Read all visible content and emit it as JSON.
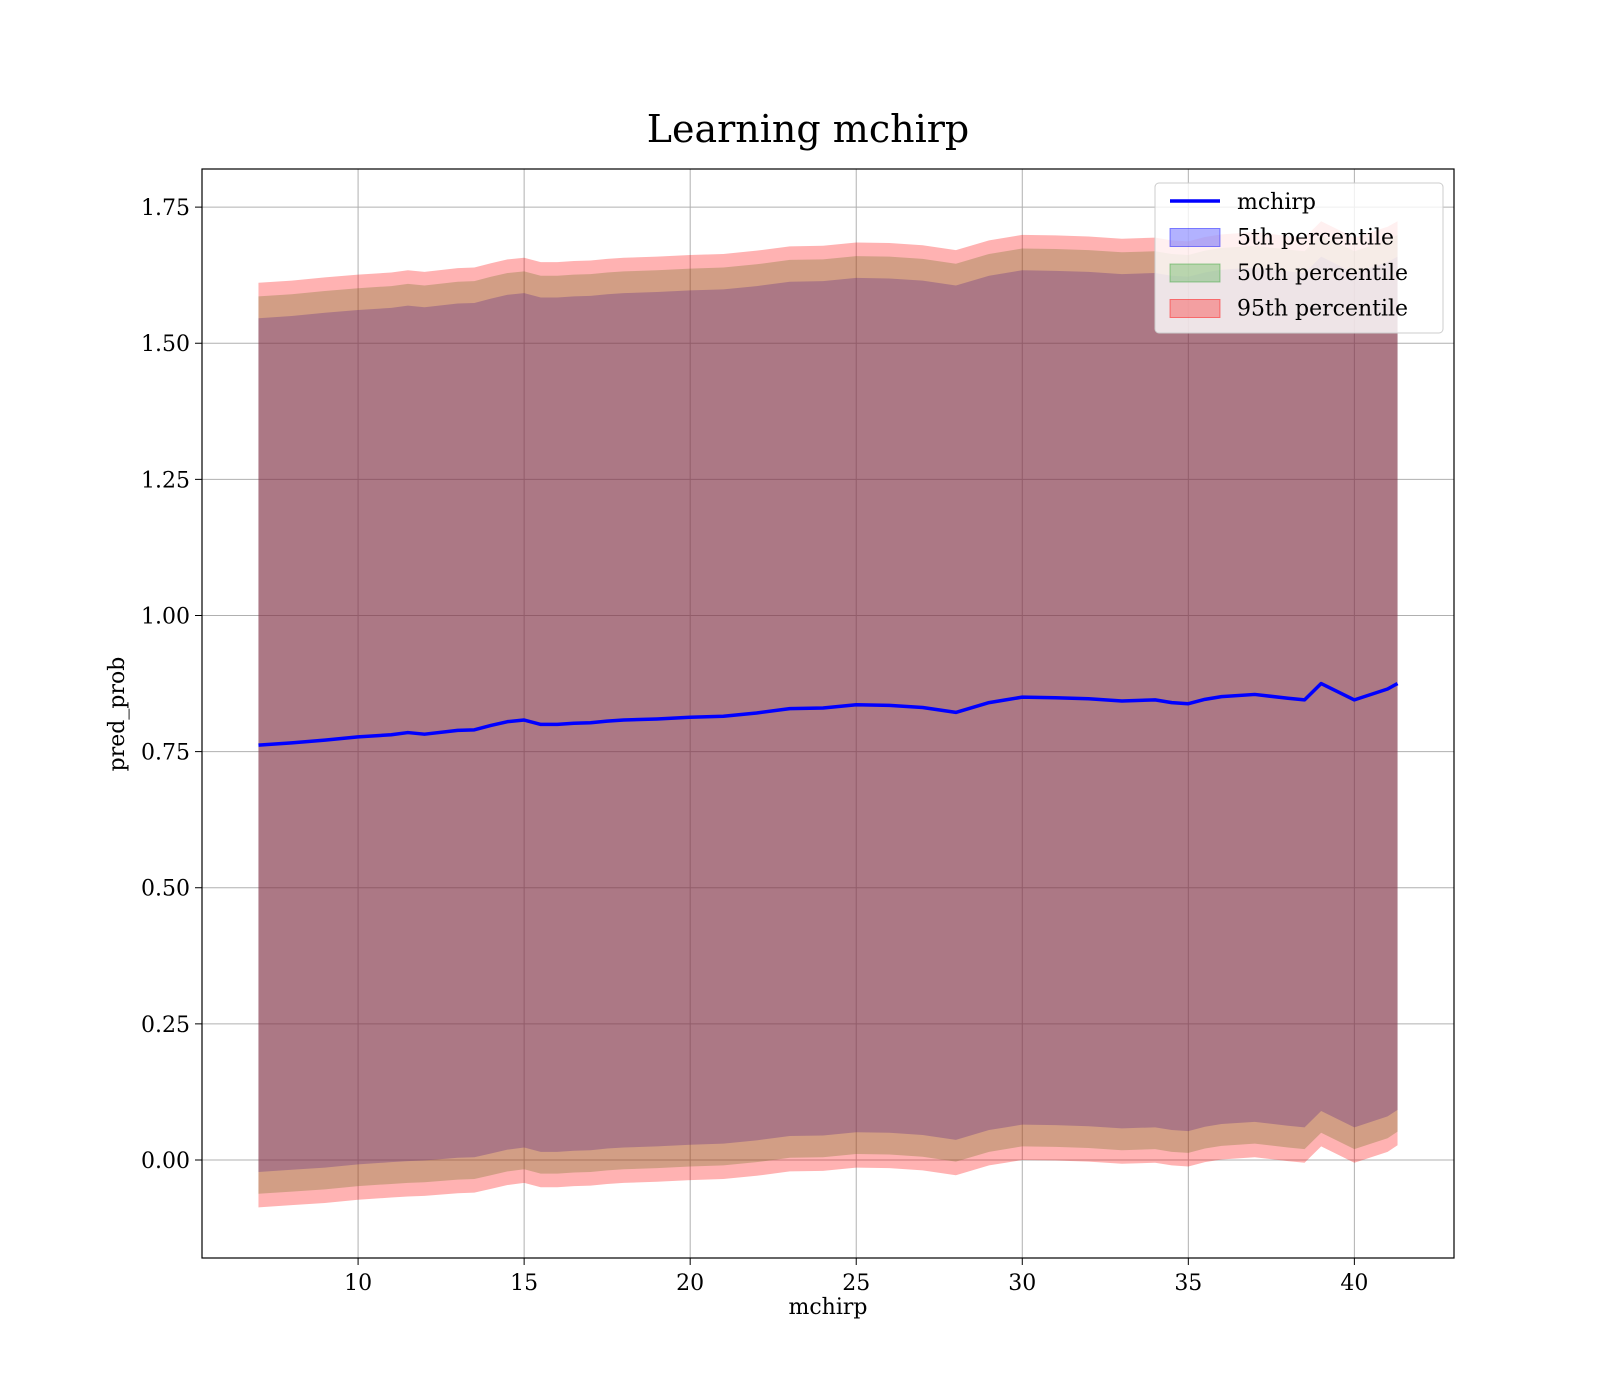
{
  "chart_data": {
    "type": "line",
    "title": "Learning mchirp",
    "xlabel": "mchirp",
    "ylabel": "pred_prob",
    "xlim": [
      5.3,
      43.0
    ],
    "ylim": [
      -0.18,
      1.82
    ],
    "xticks": [
      10,
      15,
      20,
      25,
      30,
      35,
      40
    ],
    "xtick_labels": [
      "10",
      "15",
      "20",
      "25",
      "30",
      "35",
      "40"
    ],
    "yticks": [
      0.0,
      0.25,
      0.5,
      0.75,
      1.0,
      1.25,
      1.5,
      1.75
    ],
    "ytick_labels": [
      "0.00",
      "0.25",
      "0.50",
      "0.75",
      "1.00",
      "1.25",
      "1.50",
      "1.75"
    ],
    "grid": true,
    "legend_position": "top-right",
    "x": [
      7.0,
      8.0,
      9.0,
      10.0,
      11.0,
      11.5,
      12.0,
      13.0,
      13.5,
      14.0,
      14.5,
      15.0,
      15.5,
      16.0,
      16.5,
      17.0,
      17.5,
      18.0,
      19.0,
      20.0,
      21.0,
      22.0,
      23.0,
      24.0,
      25.0,
      26.0,
      27.0,
      28.0,
      29.0,
      29.5,
      30.0,
      31.0,
      32.0,
      33.0,
      34.0,
      34.5,
      35.0,
      35.5,
      36.0,
      37.0,
      38.0,
      38.5,
      39.0,
      40.0,
      41.0,
      41.3
    ],
    "series": [
      {
        "name": "mchirp",
        "kind": "line",
        "color": "#0000ff",
        "values": [
          0.762,
          0.766,
          0.771,
          0.777,
          0.781,
          0.785,
          0.782,
          0.789,
          0.79,
          0.798,
          0.805,
          0.808,
          0.8,
          0.8,
          0.802,
          0.803,
          0.806,
          0.808,
          0.81,
          0.813,
          0.815,
          0.821,
          0.829,
          0.83,
          0.836,
          0.835,
          0.831,
          0.822,
          0.84,
          0.845,
          0.85,
          0.849,
          0.847,
          0.843,
          0.845,
          0.84,
          0.838,
          0.846,
          0.851,
          0.855,
          0.848,
          0.845,
          0.875,
          0.845,
          0.865,
          0.875
        ]
      },
      {
        "name": "5th percentile",
        "kind": "band",
        "color": "#0000ff",
        "lower": [
          -0.022,
          -0.018,
          -0.014,
          -0.008,
          -0.004,
          -0.002,
          -0.001,
          0.004,
          0.005,
          0.012,
          0.019,
          0.023,
          0.015,
          0.015,
          0.017,
          0.018,
          0.021,
          0.023,
          0.025,
          0.028,
          0.03,
          0.036,
          0.044,
          0.045,
          0.051,
          0.05,
          0.046,
          0.037,
          0.055,
          0.06,
          0.065,
          0.064,
          0.062,
          0.058,
          0.06,
          0.055,
          0.053,
          0.061,
          0.066,
          0.07,
          0.063,
          0.06,
          0.09,
          0.06,
          0.08,
          0.092
        ],
        "upper": [
          1.546,
          1.55,
          1.556,
          1.561,
          1.565,
          1.569,
          1.566,
          1.573,
          1.574,
          1.582,
          1.589,
          1.592,
          1.584,
          1.584,
          1.586,
          1.587,
          1.59,
          1.592,
          1.594,
          1.597,
          1.599,
          1.605,
          1.613,
          1.614,
          1.62,
          1.619,
          1.615,
          1.606,
          1.624,
          1.629,
          1.634,
          1.633,
          1.631,
          1.627,
          1.629,
          1.624,
          1.622,
          1.63,
          1.635,
          1.639,
          1.632,
          1.629,
          1.659,
          1.629,
          1.649,
          1.659
        ]
      },
      {
        "name": "50th percentile",
        "kind": "band",
        "color": "#2ca02c",
        "lower": [
          -0.062,
          -0.058,
          -0.054,
          -0.048,
          -0.044,
          -0.042,
          -0.041,
          -0.036,
          -0.035,
          -0.028,
          -0.021,
          -0.017,
          -0.025,
          -0.025,
          -0.023,
          -0.022,
          -0.019,
          -0.017,
          -0.015,
          -0.012,
          -0.01,
          -0.004,
          0.004,
          0.005,
          0.011,
          0.01,
          0.006,
          -0.003,
          0.015,
          0.02,
          0.025,
          0.024,
          0.022,
          0.018,
          0.02,
          0.015,
          0.013,
          0.021,
          0.026,
          0.03,
          0.023,
          0.02,
          0.05,
          0.02,
          0.04,
          0.052
        ],
        "upper": [
          1.586,
          1.59,
          1.596,
          1.601,
          1.605,
          1.609,
          1.606,
          1.613,
          1.614,
          1.622,
          1.629,
          1.632,
          1.624,
          1.624,
          1.626,
          1.627,
          1.63,
          1.632,
          1.634,
          1.637,
          1.639,
          1.645,
          1.653,
          1.654,
          1.66,
          1.659,
          1.655,
          1.646,
          1.664,
          1.669,
          1.674,
          1.673,
          1.671,
          1.667,
          1.669,
          1.664,
          1.662,
          1.67,
          1.675,
          1.679,
          1.672,
          1.669,
          1.699,
          1.669,
          1.689,
          1.699
        ]
      },
      {
        "name": "95th percentile",
        "kind": "band",
        "color": "#ff0000",
        "lower": [
          -0.087,
          -0.083,
          -0.079,
          -0.073,
          -0.069,
          -0.067,
          -0.066,
          -0.061,
          -0.06,
          -0.053,
          -0.046,
          -0.042,
          -0.05,
          -0.05,
          -0.048,
          -0.047,
          -0.044,
          -0.042,
          -0.04,
          -0.037,
          -0.035,
          -0.029,
          -0.021,
          -0.02,
          -0.014,
          -0.015,
          -0.019,
          -0.028,
          -0.01,
          -0.005,
          0.0,
          -0.001,
          -0.003,
          -0.007,
          -0.005,
          -0.01,
          -0.012,
          -0.004,
          0.001,
          0.005,
          -0.002,
          -0.005,
          0.025,
          -0.005,
          0.015,
          0.027
        ],
        "upper": [
          1.611,
          1.615,
          1.621,
          1.626,
          1.63,
          1.634,
          1.631,
          1.638,
          1.639,
          1.647,
          1.654,
          1.657,
          1.649,
          1.649,
          1.651,
          1.652,
          1.655,
          1.657,
          1.659,
          1.662,
          1.664,
          1.67,
          1.678,
          1.679,
          1.685,
          1.684,
          1.68,
          1.671,
          1.689,
          1.694,
          1.699,
          1.698,
          1.696,
          1.692,
          1.694,
          1.689,
          1.687,
          1.695,
          1.7,
          1.704,
          1.697,
          1.694,
          1.724,
          1.694,
          1.714,
          1.724
        ]
      }
    ]
  }
}
